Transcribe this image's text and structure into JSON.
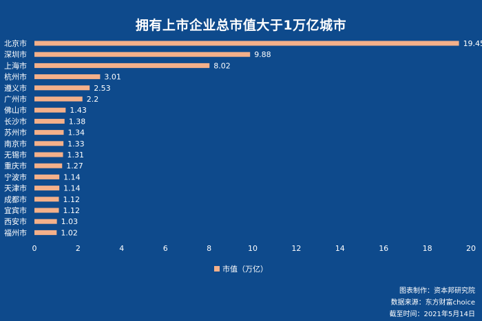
{
  "chart_data": {
    "type": "bar",
    "orientation": "horizontal",
    "title": "拥有上市企业总市值大于1万亿城市",
    "categories": [
      "北京市",
      "深圳市",
      "上海市",
      "杭州市",
      "遵义市",
      "广州市",
      "佛山市",
      "长沙市",
      "苏州市",
      "南京市",
      "无锡市",
      "重庆市",
      "宁波市",
      "天津市",
      "成都市",
      "宜宾市",
      "西安市",
      "福州市"
    ],
    "values": [
      19.45,
      9.88,
      8.02,
      3.01,
      2.53,
      2.2,
      1.43,
      1.38,
      1.34,
      1.33,
      1.31,
      1.27,
      1.14,
      1.14,
      1.12,
      1.12,
      1.03,
      1.02
    ],
    "value_labels": [
      "19.45",
      "9.88",
      "8.02",
      "3.01",
      "2.53",
      "2.2",
      "1.43",
      "1.38",
      "1.34",
      "1.33",
      "1.31",
      "1.27",
      "1.14",
      "1.14",
      "1.12",
      "1.12",
      "1.03",
      "1.02"
    ],
    "series": [
      {
        "name": "市值（万亿）"
      }
    ],
    "xlim": [
      0,
      20
    ],
    "xticks": [
      "0",
      "2",
      "4",
      "6",
      "8",
      "10",
      "12",
      "14",
      "16",
      "18",
      "20"
    ],
    "grid": false,
    "legend_position": "bottom-center",
    "bar_color": "#f4b08a",
    "background_color": "#0e4a8c"
  },
  "footer": {
    "maker": "图表制作：资本邦研究院",
    "source": "数据来源：东方财富choice",
    "deadline": "截至时间：2021年5月14日"
  }
}
